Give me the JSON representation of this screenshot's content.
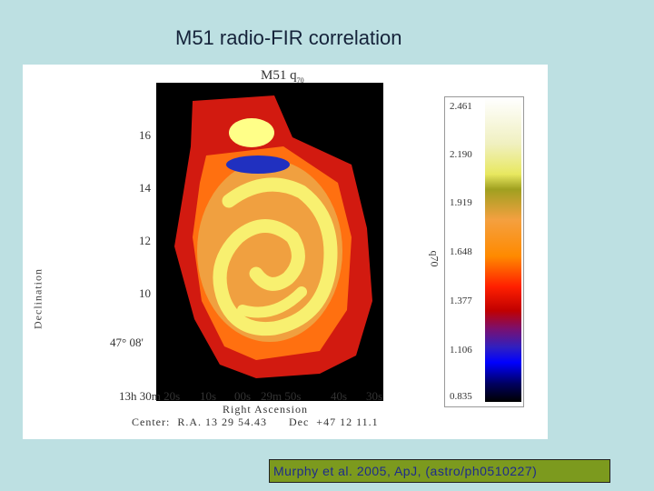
{
  "slide": {
    "title": "M51 radio-FIR correlation",
    "citation": "Murphy et al. 2005, ApJ, (astro/ph0510227)"
  },
  "figure": {
    "title_main": "M51",
    "title_q": "q",
    "title_q_sub": "70",
    "y_axis_label": "Declination",
    "y_ticks": [
      "16",
      "14",
      "12",
      "10",
      "47° 08'"
    ],
    "x_ticks": [
      "13h 30m 20s",
      "10s",
      "00s",
      "29m 50s",
      "40s",
      "30s"
    ],
    "x_axis_label": "Right Ascension",
    "center_label": "Center:  R.A. 13 29 54.43      Dec  +47 12 11.1",
    "colorbar_label": "q70",
    "colorbar_ticks": [
      "2.461",
      "2.190",
      "1.919",
      "1.648",
      "1.377",
      "1.106",
      "0.835"
    ],
    "colorscale": [
      "#000000",
      "#0000ff",
      "#7a1070",
      "#ff2000",
      "#ff8a00",
      "#e8e860",
      "#ffffff"
    ]
  }
}
